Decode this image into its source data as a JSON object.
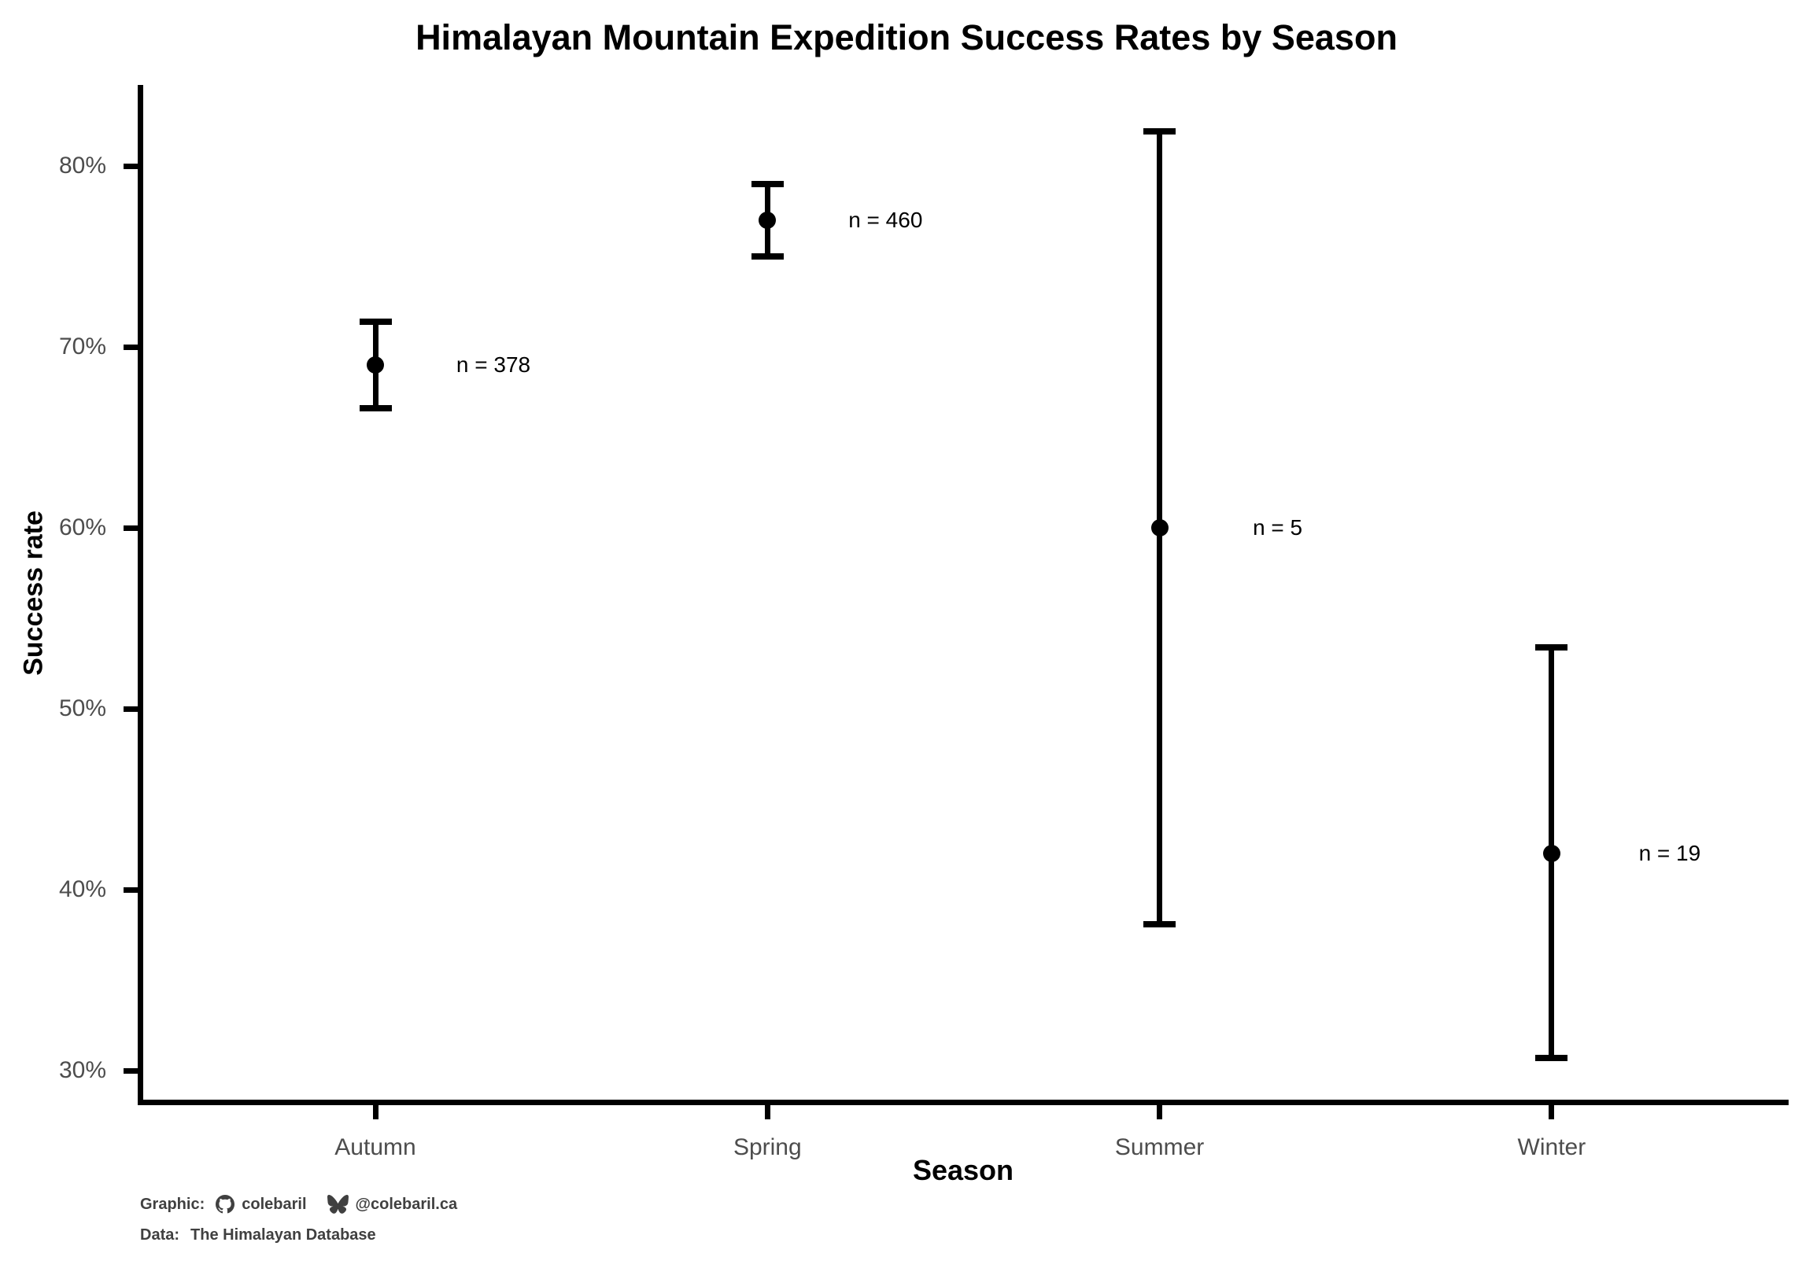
{
  "chart_data": {
    "type": "scatter",
    "subtype": "point-range-errorbar",
    "title": "Himalayan Mountain Expedition Success Rates by Season",
    "xlabel": "Season",
    "ylabel": "Success rate",
    "categories": [
      "Autumn",
      "Spring",
      "Summer",
      "Winter"
    ],
    "series": [
      {
        "name": "Success rate (%)",
        "values": [
          69,
          77,
          60,
          42
        ],
        "ci_low": [
          66.6,
          75.0,
          38.1,
          30.7
        ],
        "ci_high": [
          71.4,
          79.0,
          81.9,
          53.4
        ],
        "n": [
          378,
          460,
          5,
          19
        ],
        "point_labels": [
          "n = 378",
          "n = 460",
          "n = 5",
          "n = 19"
        ]
      }
    ],
    "yticks": [
      30,
      40,
      50,
      60,
      70,
      80
    ],
    "ytick_labels": [
      "30%",
      "40%",
      "50%",
      "60%",
      "70%",
      "80%"
    ],
    "ylim": [
      28.3,
      84.5
    ],
    "grid": false,
    "legend": "none",
    "error_bars": true,
    "point_color": "#000000"
  },
  "footer": {
    "graphic_label": "Graphic:",
    "graphic_name": "colebaril",
    "handle": "@colebaril.ca",
    "data_label": "Data:",
    "data_source": "The Himalayan Database"
  },
  "colors": {
    "background": "#FFFFFF",
    "series": "#000000",
    "axis_line": "#000000",
    "axis_text": "#4D4D4D",
    "titles": "#000000",
    "footer_text": "#404040"
  }
}
